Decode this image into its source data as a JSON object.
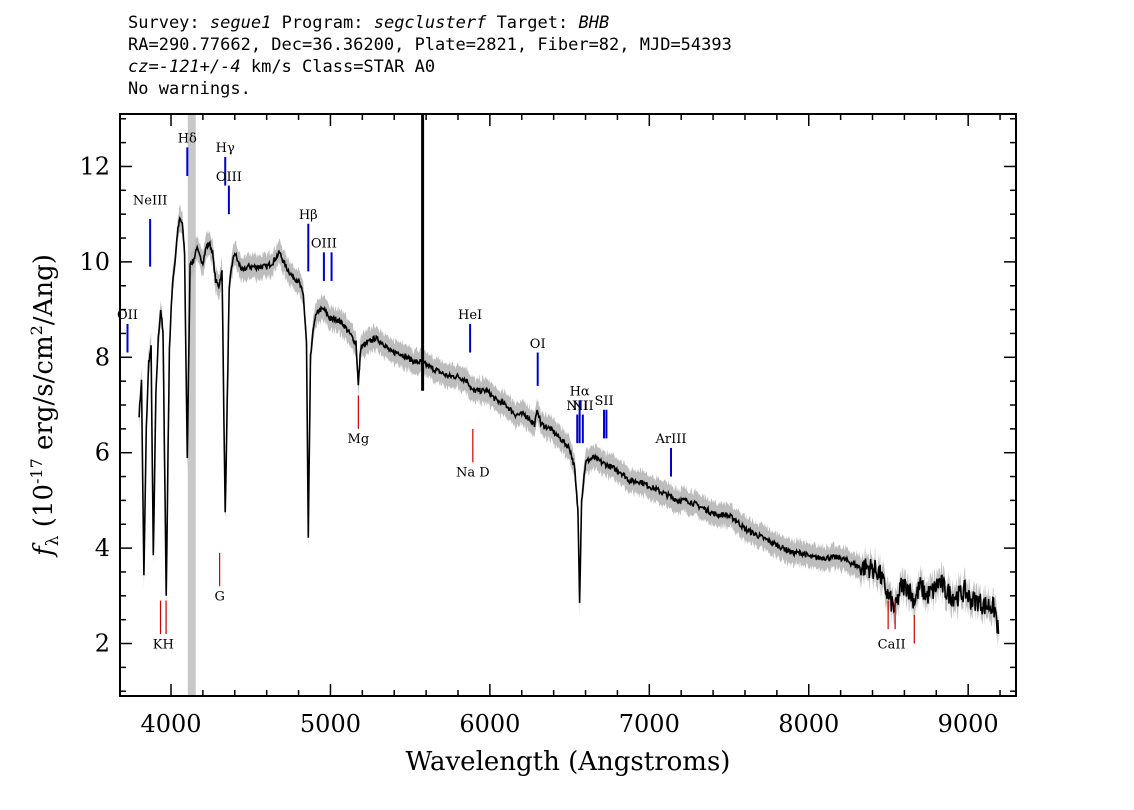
{
  "header": {
    "survey_label": "Survey:",
    "survey": "segue1",
    "program_label": "Program:",
    "program": "segclusterf",
    "target_label": "Target:",
    "target": "BHB",
    "line2": "RA=290.77662, Dec=36.36200, Plate=2821, Fiber=82, MJD=54393",
    "cz_label": "cz=",
    "cz_value": "-121+/-4",
    "cz_rest": " km/s Class=STAR A0",
    "line4": "No warnings."
  },
  "chart_data": {
    "type": "line",
    "xlabel": "Wavelength (Angstroms)",
    "ylabel_prefix": "f",
    "ylabel_sub": "λ",
    "ylabel_rest": " (10",
    "ylabel_exp": "-17",
    "ylabel_unit": " erg/s/cm",
    "ylabel_exp2": "2",
    "ylabel_end": "/Ang)",
    "xlim": [
      3680,
      9300
    ],
    "ylim": [
      0.9,
      13.1
    ],
    "xticks": [
      4000,
      5000,
      6000,
      7000,
      8000,
      9000
    ],
    "yticks": [
      2,
      4,
      6,
      8,
      10,
      12
    ],
    "masked_band": [
      4105,
      4155
    ],
    "spike": {
      "x": 5578,
      "y_top": 13.1,
      "y_bottom": 7.3
    },
    "spectrum": [
      [
        3800,
        6.8
      ],
      [
        3815,
        7.5
      ],
      [
        3830,
        3.4
      ],
      [
        3845,
        6.5
      ],
      [
        3860,
        7.9
      ],
      [
        3875,
        8.2
      ],
      [
        3889,
        3.8
      ],
      [
        3905,
        7.2
      ],
      [
        3920,
        8.4
      ],
      [
        3935,
        9.0
      ],
      [
        3950,
        8.5
      ],
      [
        3970,
        3.0
      ],
      [
        3990,
        8.2
      ],
      [
        4010,
        9.6
      ],
      [
        4025,
        10.0
      ],
      [
        4040,
        10.6
      ],
      [
        4055,
        10.9
      ],
      [
        4070,
        10.8
      ],
      [
        4085,
        10.2
      ],
      [
        4102,
        5.9
      ],
      [
        4120,
        10.0
      ],
      [
        4140,
        10.0
      ],
      [
        4160,
        10.3
      ],
      [
        4180,
        10.1
      ],
      [
        4200,
        10.0
      ],
      [
        4220,
        10.3
      ],
      [
        4240,
        10.4
      ],
      [
        4260,
        10.2
      ],
      [
        4280,
        9.6
      ],
      [
        4300,
        9.5
      ],
      [
        4320,
        9.8
      ],
      [
        4340,
        4.7
      ],
      [
        4365,
        9.4
      ],
      [
        4380,
        9.9
      ],
      [
        4400,
        10.2
      ],
      [
        4420,
        10.0
      ],
      [
        4450,
        9.8
      ],
      [
        4480,
        9.9
      ],
      [
        4520,
        9.9
      ],
      [
        4560,
        9.9
      ],
      [
        4600,
        9.9
      ],
      [
        4640,
        10.0
      ],
      [
        4680,
        10.2
      ],
      [
        4720,
        9.9
      ],
      [
        4760,
        9.7
      ],
      [
        4800,
        9.6
      ],
      [
        4830,
        9.3
      ],
      [
        4850,
        8.3
      ],
      [
        4861,
        4.2
      ],
      [
        4875,
        8.0
      ],
      [
        4900,
        8.8
      ],
      [
        4930,
        9.0
      ],
      [
        4960,
        9.0
      ],
      [
        5000,
        8.8
      ],
      [
        5040,
        8.8
      ],
      [
        5080,
        8.7
      ],
      [
        5120,
        8.5
      ],
      [
        5160,
        8.3
      ],
      [
        5175,
        7.4
      ],
      [
        5190,
        8.2
      ],
      [
        5230,
        8.3
      ],
      [
        5280,
        8.4
      ],
      [
        5330,
        8.3
      ],
      [
        5380,
        8.1
      ],
      [
        5430,
        8.1
      ],
      [
        5480,
        8.0
      ],
      [
        5530,
        7.9
      ],
      [
        5570,
        7.9
      ],
      [
        5620,
        7.8
      ],
      [
        5680,
        7.7
      ],
      [
        5740,
        7.6
      ],
      [
        5800,
        7.6
      ],
      [
        5860,
        7.5
      ],
      [
        5890,
        7.3
      ],
      [
        5920,
        7.3
      ],
      [
        5980,
        7.3
      ],
      [
        6040,
        7.1
      ],
      [
        6100,
        7.0
      ],
      [
        6160,
        6.8
      ],
      [
        6220,
        6.8
      ],
      [
        6280,
        6.6
      ],
      [
        6300,
        6.9
      ],
      [
        6320,
        6.6
      ],
      [
        6380,
        6.5
      ],
      [
        6440,
        6.3
      ],
      [
        6500,
        6.1
      ],
      [
        6530,
        5.7
      ],
      [
        6552,
        4.8
      ],
      [
        6563,
        2.9
      ],
      [
        6575,
        5.0
      ],
      [
        6600,
        5.8
      ],
      [
        6650,
        5.9
      ],
      [
        6700,
        5.8
      ],
      [
        6760,
        5.7
      ],
      [
        6820,
        5.6
      ],
      [
        6880,
        5.4
      ],
      [
        6940,
        5.4
      ],
      [
        7000,
        5.3
      ],
      [
        7060,
        5.2
      ],
      [
        7120,
        5.1
      ],
      [
        7180,
        5.0
      ],
      [
        7240,
        5.0
      ],
      [
        7300,
        4.9
      ],
      [
        7360,
        4.8
      ],
      [
        7420,
        4.7
      ],
      [
        7480,
        4.7
      ],
      [
        7540,
        4.6
      ],
      [
        7600,
        4.4
      ],
      [
        7660,
        4.3
      ],
      [
        7720,
        4.2
      ],
      [
        7780,
        4.1
      ],
      [
        7840,
        4.0
      ],
      [
        7900,
        3.9
      ],
      [
        7960,
        3.9
      ],
      [
        8020,
        3.8
      ],
      [
        8080,
        3.8
      ],
      [
        8140,
        3.8
      ],
      [
        8200,
        3.8
      ],
      [
        8260,
        3.7
      ],
      [
        8320,
        3.6
      ],
      [
        8380,
        3.6
      ],
      [
        8440,
        3.5
      ],
      [
        8498,
        3.0
      ],
      [
        8542,
        2.7
      ],
      [
        8580,
        3.2
      ],
      [
        8620,
        3.2
      ],
      [
        8662,
        2.9
      ],
      [
        8700,
        3.2
      ],
      [
        8740,
        3.0
      ],
      [
        8780,
        3.1
      ],
      [
        8820,
        3.3
      ],
      [
        8860,
        3.1
      ],
      [
        8900,
        3.0
      ],
      [
        8940,
        3.0
      ],
      [
        8980,
        3.1
      ],
      [
        9020,
        2.9
      ],
      [
        9060,
        2.9
      ],
      [
        9100,
        2.8
      ],
      [
        9140,
        2.8
      ],
      [
        9170,
        2.7
      ],
      [
        9190,
        2.2
      ]
    ],
    "emission_lines": [
      {
        "label": "OII",
        "x": 3727,
        "y_label": 8.8,
        "y1": 8.1,
        "y2": 8.7
      },
      {
        "label": "NeIII",
        "x": 3869,
        "y_label": 11.2,
        "y1": 9.9,
        "y2": 10.9
      },
      {
        "label": "Hδ",
        "x": 4102,
        "y_label": 12.5,
        "y1": 11.8,
        "y2": 12.4
      },
      {
        "label": "Hγ",
        "x": 4340,
        "y_label": 12.3,
        "y1": 11.6,
        "y2": 12.2
      },
      {
        "label": "OIII",
        "x": 4363,
        "y_label": 11.7,
        "y1": 11.0,
        "y2": 11.6
      },
      {
        "label": "Hβ",
        "x": 4861,
        "y_label": 10.9,
        "y1": 9.8,
        "y2": 10.8
      },
      {
        "label": "OIII",
        "x": 4959,
        "y_label": 10.3,
        "y1": 9.6,
        "y2": 10.2
      },
      {
        "label": "",
        "x": 5007,
        "y_label": 10.3,
        "y1": 9.6,
        "y2": 10.2
      },
      {
        "label": "HeI",
        "x": 5876,
        "y_label": 8.8,
        "y1": 8.1,
        "y2": 8.7
      },
      {
        "label": "OI",
        "x": 6300,
        "y_label": 8.2,
        "y1": 7.4,
        "y2": 8.1
      },
      {
        "label": "NII",
        "x": 6548,
        "y_label": 6.9,
        "y1": 6.2,
        "y2": 6.8
      },
      {
        "label": "Hα",
        "x": 6563,
        "y_label": 7.2,
        "y1": 6.2,
        "y2": 7.1
      },
      {
        "label": "NII",
        "x": 6583,
        "y_label": 6.9,
        "y1": 6.2,
        "y2": 6.8
      },
      {
        "label": "SII",
        "x": 6716,
        "y_label": 7.0,
        "y1": 6.3,
        "y2": 6.9
      },
      {
        "label": "",
        "x": 6731,
        "y_label": 7.0,
        "y1": 6.3,
        "y2": 6.9
      },
      {
        "label": "ArIII",
        "x": 7136,
        "y_label": 6.2,
        "y1": 5.5,
        "y2": 6.1
      }
    ],
    "absorption_lines": [
      {
        "label": "K",
        "x": 3934,
        "y1": 2.2,
        "y2": 2.9,
        "y_label": 1.9
      },
      {
        "label": "H",
        "x": 3969,
        "y1": 2.2,
        "y2": 2.9,
        "y_label": 1.9
      },
      {
        "label": "G",
        "x": 4305,
        "y1": 3.2,
        "y2": 3.9,
        "y_label": 2.9
      },
      {
        "label": "Mg",
        "x": 5175,
        "y1": 6.5,
        "y2": 7.2,
        "y_label": 6.2
      },
      {
        "label": "Na D",
        "x": 5893,
        "y1": 5.8,
        "y2": 6.5,
        "y_label": 5.5
      },
      {
        "label": "CaII",
        "x": 8498,
        "y1": 2.3,
        "y2": 2.9,
        "y_label": 1.9
      },
      {
        "label": "",
        "x": 8542,
        "y1": 2.3,
        "y2": 2.9,
        "y_label": 1.9
      },
      {
        "label": "",
        "x": 8662,
        "y1": 2.0,
        "y2": 2.6,
        "y_label": 1.9
      }
    ],
    "colors": {
      "spectrum": "#000000",
      "error": "#bdbdbd",
      "emission": "#0000cc",
      "absorption": "#cc0000",
      "mask": "#c8c8c8"
    }
  }
}
